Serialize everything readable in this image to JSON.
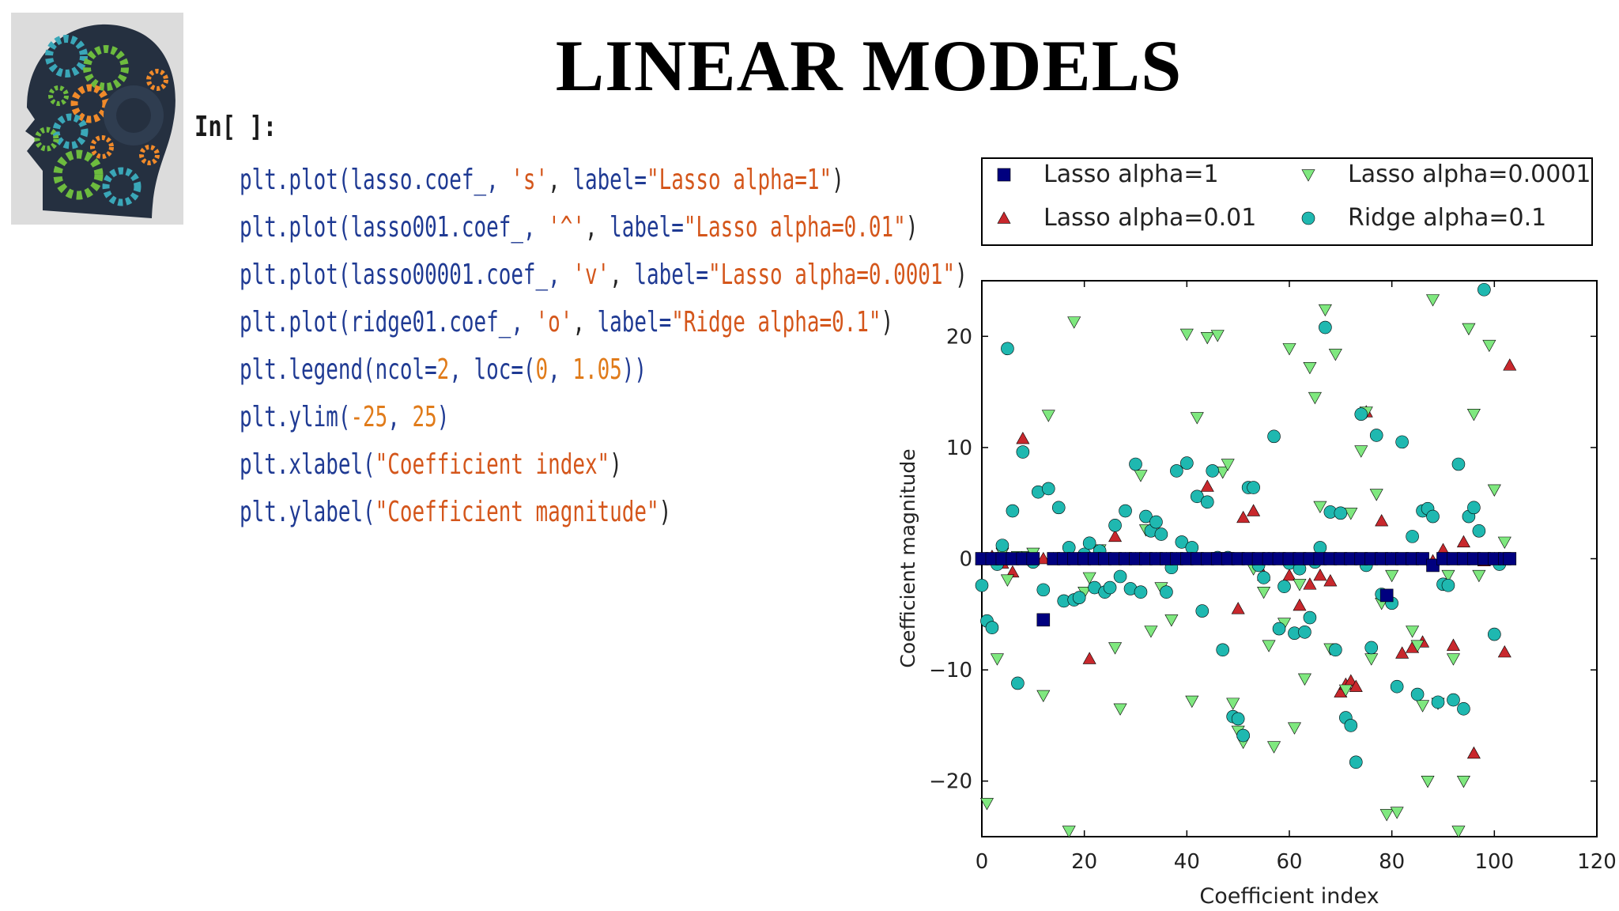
{
  "slide": {
    "title": "LINEAR MODELS",
    "prompt": "In[  ]:"
  },
  "code": [
    [
      [
        "id",
        "plt.plot(lasso.coef_, "
      ],
      [
        "str",
        "'s'"
      ],
      [
        "p",
        ", "
      ],
      [
        "id",
        "label="
      ],
      [
        "str",
        "\"Lasso alpha=1\""
      ],
      [
        "p",
        ")"
      ]
    ],
    [
      [
        "id",
        "plt.plot(lasso001.coef_, "
      ],
      [
        "str",
        "'^'"
      ],
      [
        "p",
        ", "
      ],
      [
        "id",
        "label="
      ],
      [
        "str",
        "\"Lasso alpha=0.01\""
      ],
      [
        "p",
        ")"
      ]
    ],
    [
      [
        "id",
        "plt.plot(lasso00001.coef_, "
      ],
      [
        "str",
        "'v'"
      ],
      [
        "p",
        ", "
      ],
      [
        "id",
        "label="
      ],
      [
        "str",
        "\"Lasso alpha=0.0001\""
      ],
      [
        "p",
        ")"
      ]
    ],
    [
      [
        "id",
        "plt.plot(ridge01.coef_, "
      ],
      [
        "str",
        "'o'"
      ],
      [
        "p",
        ", "
      ],
      [
        "id",
        "label="
      ],
      [
        "str",
        "\"Ridge alpha=0.1\""
      ],
      [
        "p",
        ")"
      ]
    ],
    [
      [
        "id",
        "plt.legend(ncol="
      ],
      [
        "num",
        "2"
      ],
      [
        "id",
        ", loc=("
      ],
      [
        "num",
        "0"
      ],
      [
        "id",
        ", "
      ],
      [
        "num",
        "1.05"
      ],
      [
        "id",
        "))"
      ]
    ],
    [
      [
        "id",
        "plt.ylim("
      ],
      [
        "num",
        "-25"
      ],
      [
        "id",
        ", "
      ],
      [
        "num",
        "25"
      ],
      [
        "id",
        ")"
      ]
    ],
    [
      [
        "id",
        "plt.xlabel("
      ],
      [
        "str",
        "\"Coefficient index\""
      ],
      [
        "p",
        ")"
      ]
    ],
    [
      [
        "id",
        "plt.ylabel("
      ],
      [
        "str",
        "\"Coefficient magnitude\""
      ],
      [
        "p",
        ")"
      ]
    ]
  ],
  "colors": {
    "lasso1": "#00007f",
    "lasso001": "#c8282d",
    "lasso00001": "#7fe87f",
    "ridge01": "#1fb8b0"
  },
  "chart_data": {
    "type": "scatter",
    "xlabel": "Coefficient index",
    "ylabel": "Coefficient magnitude",
    "xlim": [
      0,
      120
    ],
    "ylim": [
      -25,
      25
    ],
    "xticks": [
      0,
      20,
      40,
      60,
      80,
      100,
      120
    ],
    "yticks": [
      -20,
      -10,
      0,
      10,
      20
    ],
    "legend_position": "above plot, 2 columns",
    "series": [
      {
        "name": "Lasso alpha=1",
        "marker": "s",
        "color": "#00007f",
        "points": [
          [
            0,
            0
          ],
          [
            2,
            0
          ],
          [
            4,
            0
          ],
          [
            6,
            0
          ],
          [
            8,
            0
          ],
          [
            10,
            0
          ],
          [
            12,
            -5.5
          ],
          [
            14,
            0
          ],
          [
            16,
            0
          ],
          [
            18,
            0
          ],
          [
            20,
            0
          ],
          [
            22,
            0
          ],
          [
            24,
            0
          ],
          [
            26,
            0
          ],
          [
            28,
            0
          ],
          [
            30,
            0
          ],
          [
            32,
            0
          ],
          [
            34,
            0
          ],
          [
            36,
            0
          ],
          [
            38,
            0
          ],
          [
            40,
            0
          ],
          [
            42,
            0
          ],
          [
            44,
            0
          ],
          [
            46,
            0
          ],
          [
            48,
            0
          ],
          [
            50,
            0
          ],
          [
            52,
            0
          ],
          [
            54,
            0
          ],
          [
            56,
            0
          ],
          [
            58,
            0
          ],
          [
            60,
            0
          ],
          [
            62,
            0
          ],
          [
            64,
            0
          ],
          [
            66,
            0
          ],
          [
            68,
            0
          ],
          [
            70,
            0
          ],
          [
            72,
            0
          ],
          [
            74,
            0
          ],
          [
            76,
            0
          ],
          [
            78,
            0
          ],
          [
            79,
            -3.3
          ],
          [
            80,
            0
          ],
          [
            82,
            0
          ],
          [
            84,
            0
          ],
          [
            86,
            0
          ],
          [
            88,
            -0.6
          ],
          [
            90,
            0
          ],
          [
            92,
            0
          ],
          [
            94,
            0
          ],
          [
            96,
            0
          ],
          [
            98,
            0
          ],
          [
            100,
            0
          ],
          [
            102,
            0
          ],
          [
            103,
            0
          ]
        ]
      },
      {
        "name": "Lasso alpha=0.01",
        "marker": "^",
        "color": "#c8282d",
        "points": [
          [
            0,
            0
          ],
          [
            2,
            0.2
          ],
          [
            4,
            -0.4
          ],
          [
            6,
            -1.2
          ],
          [
            8,
            10.8
          ],
          [
            10,
            0
          ],
          [
            12,
            0
          ],
          [
            14,
            0
          ],
          [
            16,
            0
          ],
          [
            18,
            0
          ],
          [
            20,
            0
          ],
          [
            21,
            -9
          ],
          [
            24,
            0
          ],
          [
            26,
            2
          ],
          [
            28,
            0
          ],
          [
            30,
            0
          ],
          [
            32,
            0
          ],
          [
            34,
            0
          ],
          [
            36,
            0
          ],
          [
            38,
            0
          ],
          [
            40,
            0
          ],
          [
            42,
            0
          ],
          [
            44,
            6.5
          ],
          [
            46,
            0
          ],
          [
            48,
            0
          ],
          [
            50,
            -4.5
          ],
          [
            51,
            3.7
          ],
          [
            53,
            4.3
          ],
          [
            55,
            -1.5
          ],
          [
            58,
            0
          ],
          [
            60,
            -1.5
          ],
          [
            62,
            -4.2
          ],
          [
            64,
            -2.3
          ],
          [
            66,
            -1.5
          ],
          [
            68,
            -2
          ],
          [
            70,
            -12
          ],
          [
            71,
            -11.3
          ],
          [
            72,
            -11
          ],
          [
            73,
            -11.5
          ],
          [
            75,
            13.2
          ],
          [
            77,
            0
          ],
          [
            78,
            3.4
          ],
          [
            80,
            0
          ],
          [
            82,
            -8.5
          ],
          [
            84,
            -8
          ],
          [
            86,
            -7.5
          ],
          [
            88,
            -0.2
          ],
          [
            90,
            0.8
          ],
          [
            92,
            -7.8
          ],
          [
            94,
            1.5
          ],
          [
            96,
            -17.5
          ],
          [
            98,
            -0.2
          ],
          [
            100,
            0
          ],
          [
            102,
            -8.4
          ],
          [
            103,
            17.4
          ]
        ]
      },
      {
        "name": "Lasso alpha=0.0001",
        "marker": "v",
        "color": "#7fe87f",
        "points": [
          [
            1,
            -22
          ],
          [
            3,
            -9
          ],
          [
            4,
            0.5
          ],
          [
            5,
            -1.9
          ],
          [
            7,
            0.2
          ],
          [
            9,
            0.2
          ],
          [
            10,
            0.5
          ],
          [
            12,
            -12.3
          ],
          [
            13,
            12.9
          ],
          [
            17,
            -24.5
          ],
          [
            18,
            21.3
          ],
          [
            20,
            -3
          ],
          [
            21,
            -1.7
          ],
          [
            23,
            0.8
          ],
          [
            26,
            -8
          ],
          [
            27,
            -13.5
          ],
          [
            31,
            7.5
          ],
          [
            32,
            2.6
          ],
          [
            33,
            -6.5
          ],
          [
            35,
            -2.6
          ],
          [
            37,
            -5.5
          ],
          [
            40,
            20.2
          ],
          [
            41,
            -12.8
          ],
          [
            42,
            12.7
          ],
          [
            44,
            19.9
          ],
          [
            46,
            20.1
          ],
          [
            47,
            7.8
          ],
          [
            48,
            8.5
          ],
          [
            49,
            -13
          ],
          [
            50,
            -15.5
          ],
          [
            51,
            -16.5
          ],
          [
            53,
            -0.9
          ],
          [
            55,
            -3
          ],
          [
            56,
            -7.8
          ],
          [
            57,
            -16.9
          ],
          [
            59,
            -5.8
          ],
          [
            60,
            18.9
          ],
          [
            61,
            -15.2
          ],
          [
            62,
            -2.3
          ],
          [
            63,
            -10.8
          ],
          [
            64,
            17.2
          ],
          [
            65,
            14.5
          ],
          [
            66,
            4.7
          ],
          [
            67,
            22.4
          ],
          [
            68,
            -8.1
          ],
          [
            69,
            18.4
          ],
          [
            71,
            -11.8
          ],
          [
            72,
            4.1
          ],
          [
            74,
            9.7
          ],
          [
            75,
            13.2
          ],
          [
            76,
            -9
          ],
          [
            77,
            5.8
          ],
          [
            78,
            -4
          ],
          [
            79,
            -23
          ],
          [
            80,
            -1.5
          ],
          [
            81,
            -22.8
          ],
          [
            84,
            -6.5
          ],
          [
            85,
            -7.8
          ],
          [
            86,
            -13.2
          ],
          [
            87,
            -20
          ],
          [
            88,
            23.3
          ],
          [
            89,
            -13
          ],
          [
            91,
            -1.5
          ],
          [
            92,
            -9
          ],
          [
            93,
            -24.5
          ],
          [
            94,
            -20
          ],
          [
            95,
            20.7
          ],
          [
            96,
            13
          ],
          [
            97,
            -1.5
          ],
          [
            99,
            19.2
          ],
          [
            100,
            6.2
          ],
          [
            102,
            1.5
          ]
        ]
      },
      {
        "name": "Ridge alpha=0.1",
        "marker": "o",
        "color": "#1fb8b0",
        "points": [
          [
            0,
            -2.4
          ],
          [
            1,
            -5.6
          ],
          [
            2,
            -6.2
          ],
          [
            3,
            -0.5
          ],
          [
            4,
            1.2
          ],
          [
            5,
            18.9
          ],
          [
            6,
            4.3
          ],
          [
            7,
            -11.2
          ],
          [
            8,
            9.6
          ],
          [
            10,
            -0.3
          ],
          [
            11,
            6
          ],
          [
            12,
            -2.8
          ],
          [
            13,
            6.3
          ],
          [
            15,
            4.6
          ],
          [
            16,
            -3.8
          ],
          [
            17,
            1
          ],
          [
            18,
            -3.7
          ],
          [
            19,
            -3.5
          ],
          [
            20,
            0.4
          ],
          [
            21,
            1.4
          ],
          [
            22,
            -2.6
          ],
          [
            23,
            0.7
          ],
          [
            24,
            -3
          ],
          [
            25,
            -2.6
          ],
          [
            26,
            3
          ],
          [
            27,
            -1.6
          ],
          [
            28,
            4.3
          ],
          [
            29,
            -2.7
          ],
          [
            30,
            8.5
          ],
          [
            31,
            -3
          ],
          [
            32,
            3.8
          ],
          [
            33,
            2.5
          ],
          [
            34,
            3.3
          ],
          [
            35,
            2.2
          ],
          [
            36,
            -3
          ],
          [
            37,
            -0.8
          ],
          [
            38,
            7.9
          ],
          [
            39,
            1.5
          ],
          [
            40,
            8.6
          ],
          [
            41,
            1
          ],
          [
            42,
            5.6
          ],
          [
            43,
            -4.7
          ],
          [
            44,
            5.1
          ],
          [
            45,
            7.9
          ],
          [
            46,
            0.1
          ],
          [
            47,
            -8.2
          ],
          [
            48,
            0.1
          ],
          [
            49,
            -14.2
          ],
          [
            50,
            -14.4
          ],
          [
            51,
            -15.9
          ],
          [
            52,
            6.4
          ],
          [
            53,
            6.4
          ],
          [
            54,
            -0.6
          ],
          [
            55,
            -1.7
          ],
          [
            56,
            0
          ],
          [
            57,
            11
          ],
          [
            58,
            -6.3
          ],
          [
            59,
            -2.5
          ],
          [
            60,
            -0.4
          ],
          [
            61,
            -6.7
          ],
          [
            62,
            -0.9
          ],
          [
            63,
            -6.6
          ],
          [
            64,
            -5.3
          ],
          [
            65,
            -0.3
          ],
          [
            66,
            1
          ],
          [
            67,
            20.8
          ],
          [
            68,
            4.2
          ],
          [
            69,
            -8.2
          ],
          [
            70,
            4.1
          ],
          [
            71,
            -14.3
          ],
          [
            72,
            -15
          ],
          [
            73,
            -18.3
          ],
          [
            74,
            13
          ],
          [
            75,
            -0.6
          ],
          [
            76,
            -8
          ],
          [
            77,
            11.1
          ],
          [
            78,
            -3.2
          ],
          [
            80,
            -4
          ],
          [
            81,
            -11.5
          ],
          [
            82,
            10.5
          ],
          [
            84,
            2
          ],
          [
            85,
            -12.2
          ],
          [
            86,
            4.3
          ],
          [
            87,
            4.5
          ],
          [
            88,
            3.8
          ],
          [
            89,
            -12.9
          ],
          [
            90,
            -2.3
          ],
          [
            91,
            -2.4
          ],
          [
            92,
            -12.7
          ],
          [
            93,
            8.5
          ],
          [
            94,
            -13.5
          ],
          [
            95,
            3.8
          ],
          [
            96,
            4.6
          ],
          [
            97,
            2.5
          ],
          [
            98,
            24.2
          ],
          [
            100,
            -6.8
          ],
          [
            101,
            -0.5
          ]
        ]
      }
    ]
  }
}
